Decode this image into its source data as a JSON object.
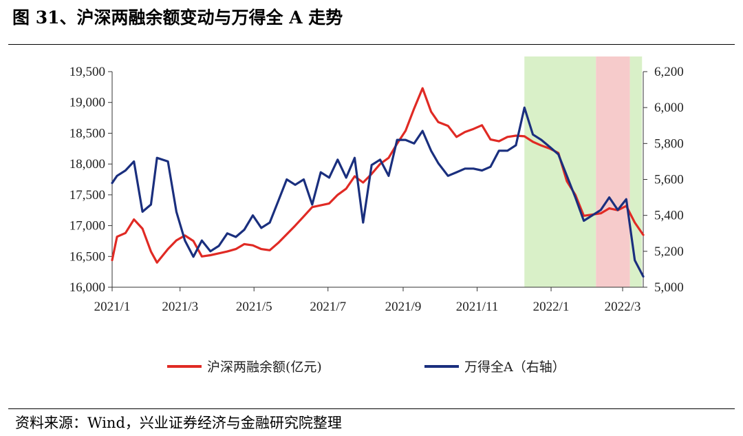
{
  "title": "图 31、沪深两融余额变动与万得全 A 走势",
  "source": "资料来源：Wind，兴业证券经济与金融研究院整理",
  "chart_data": {
    "type": "line",
    "title": "图 31、沪深两融余额变动与万得全 A 走势",
    "xlabel": "",
    "ylabel_left": "",
    "ylabel_right": "",
    "x_tick_labels": [
      "2021/1",
      "2021/3",
      "2021/5",
      "2021/7",
      "2021/9",
      "2021/11",
      "2022/1",
      "2022/3"
    ],
    "x_range": [
      "2021-01-04",
      "2022-03-18"
    ],
    "ylim_left": [
      16000,
      19500
    ],
    "ylim_right": [
      5000,
      6200
    ],
    "yticks_left": [
      "16,000",
      "16,500",
      "17,000",
      "17,500",
      "18,000",
      "18,500",
      "19,000",
      "19,500"
    ],
    "yticks_right": [
      "5,000",
      "5,200",
      "5,400",
      "5,600",
      "5,800",
      "6,000",
      "6,200"
    ],
    "grid": false,
    "legend_position": "bottom",
    "shaded_regions": [
      {
        "start": "2021-12-10",
        "end": "2022-02-07",
        "color": "#d9f0c8"
      },
      {
        "start": "2022-02-07",
        "end": "2022-03-07",
        "color": "#f6cbcb"
      },
      {
        "start": "2022-03-07",
        "end": "2022-03-17",
        "color": "#d9f0c8"
      }
    ],
    "series": [
      {
        "name": "沪深两融余额(亿元)",
        "axis": "left",
        "color": "#e02a24",
        "x": [
          "2021-01-04",
          "2021-01-08",
          "2021-01-15",
          "2021-01-22",
          "2021-01-29",
          "2021-02-05",
          "2021-02-10",
          "2021-02-19",
          "2021-02-26",
          "2021-03-05",
          "2021-03-12",
          "2021-03-19",
          "2021-03-26",
          "2021-04-02",
          "2021-04-09",
          "2021-04-16",
          "2021-04-23",
          "2021-04-30",
          "2021-05-07",
          "2021-05-14",
          "2021-05-21",
          "2021-05-28",
          "2021-06-04",
          "2021-06-11",
          "2021-06-18",
          "2021-06-25",
          "2021-07-02",
          "2021-07-09",
          "2021-07-16",
          "2021-07-23",
          "2021-07-30",
          "2021-08-06",
          "2021-08-13",
          "2021-08-20",
          "2021-08-27",
          "2021-09-03",
          "2021-09-10",
          "2021-09-17",
          "2021-09-24",
          "2021-09-30",
          "2021-10-08",
          "2021-10-15",
          "2021-10-22",
          "2021-10-29",
          "2021-11-05",
          "2021-11-12",
          "2021-11-19",
          "2021-11-26",
          "2021-12-03",
          "2021-12-10",
          "2021-12-17",
          "2021-12-24",
          "2021-12-31",
          "2022-01-07",
          "2022-01-14",
          "2022-01-21",
          "2022-01-28",
          "2022-02-11",
          "2022-02-18",
          "2022-02-25",
          "2022-03-04",
          "2022-03-11",
          "2022-03-18"
        ],
        "values": [
          16440,
          16820,
          16880,
          17100,
          16950,
          16580,
          16400,
          16620,
          16760,
          16840,
          16750,
          16500,
          16520,
          16550,
          16580,
          16620,
          16700,
          16680,
          16620,
          16600,
          16720,
          16860,
          17000,
          17150,
          17300,
          17330,
          17360,
          17500,
          17600,
          17800,
          17700,
          17840,
          18000,
          18100,
          18330,
          18540,
          18900,
          19230,
          18850,
          18680,
          18620,
          18440,
          18520,
          18570,
          18630,
          18400,
          18370,
          18440,
          18460,
          18450,
          18360,
          18300,
          18250,
          18180,
          17720,
          17500,
          17160,
          17200,
          17280,
          17250,
          17320,
          17050,
          16850
        ]
      },
      {
        "name": "万得全A（右轴）",
        "axis": "right",
        "color": "#1a2f7e",
        "x": [
          "2021-01-04",
          "2021-01-08",
          "2021-01-15",
          "2021-01-22",
          "2021-01-29",
          "2021-02-05",
          "2021-02-10",
          "2021-02-19",
          "2021-02-26",
          "2021-03-05",
          "2021-03-12",
          "2021-03-19",
          "2021-03-26",
          "2021-04-02",
          "2021-04-09",
          "2021-04-16",
          "2021-04-23",
          "2021-04-30",
          "2021-05-07",
          "2021-05-14",
          "2021-05-21",
          "2021-05-28",
          "2021-06-04",
          "2021-06-11",
          "2021-06-18",
          "2021-06-25",
          "2021-07-02",
          "2021-07-09",
          "2021-07-16",
          "2021-07-23",
          "2021-07-30",
          "2021-08-06",
          "2021-08-13",
          "2021-08-20",
          "2021-08-27",
          "2021-09-03",
          "2021-09-10",
          "2021-09-17",
          "2021-09-24",
          "2021-09-30",
          "2021-10-08",
          "2021-10-15",
          "2021-10-22",
          "2021-10-29",
          "2021-11-05",
          "2021-11-12",
          "2021-11-19",
          "2021-11-26",
          "2021-12-03",
          "2021-12-10",
          "2021-12-17",
          "2021-12-24",
          "2021-12-31",
          "2022-01-07",
          "2022-01-14",
          "2022-01-21",
          "2022-01-28",
          "2022-02-11",
          "2022-02-18",
          "2022-02-25",
          "2022-03-04",
          "2022-03-11",
          "2022-03-18"
        ],
        "values": [
          5580,
          5620,
          5650,
          5700,
          5420,
          5460,
          5720,
          5700,
          5420,
          5260,
          5170,
          5260,
          5200,
          5230,
          5300,
          5280,
          5320,
          5400,
          5330,
          5360,
          5480,
          5600,
          5570,
          5600,
          5460,
          5640,
          5610,
          5710,
          5610,
          5720,
          5360,
          5680,
          5710,
          5620,
          5820,
          5820,
          5800,
          5870,
          5760,
          5690,
          5620,
          5640,
          5660,
          5660,
          5650,
          5670,
          5760,
          5760,
          5790,
          6000,
          5850,
          5820,
          5780,
          5740,
          5620,
          5500,
          5370,
          5430,
          5500,
          5430,
          5490,
          5150,
          5060
        ]
      }
    ]
  }
}
